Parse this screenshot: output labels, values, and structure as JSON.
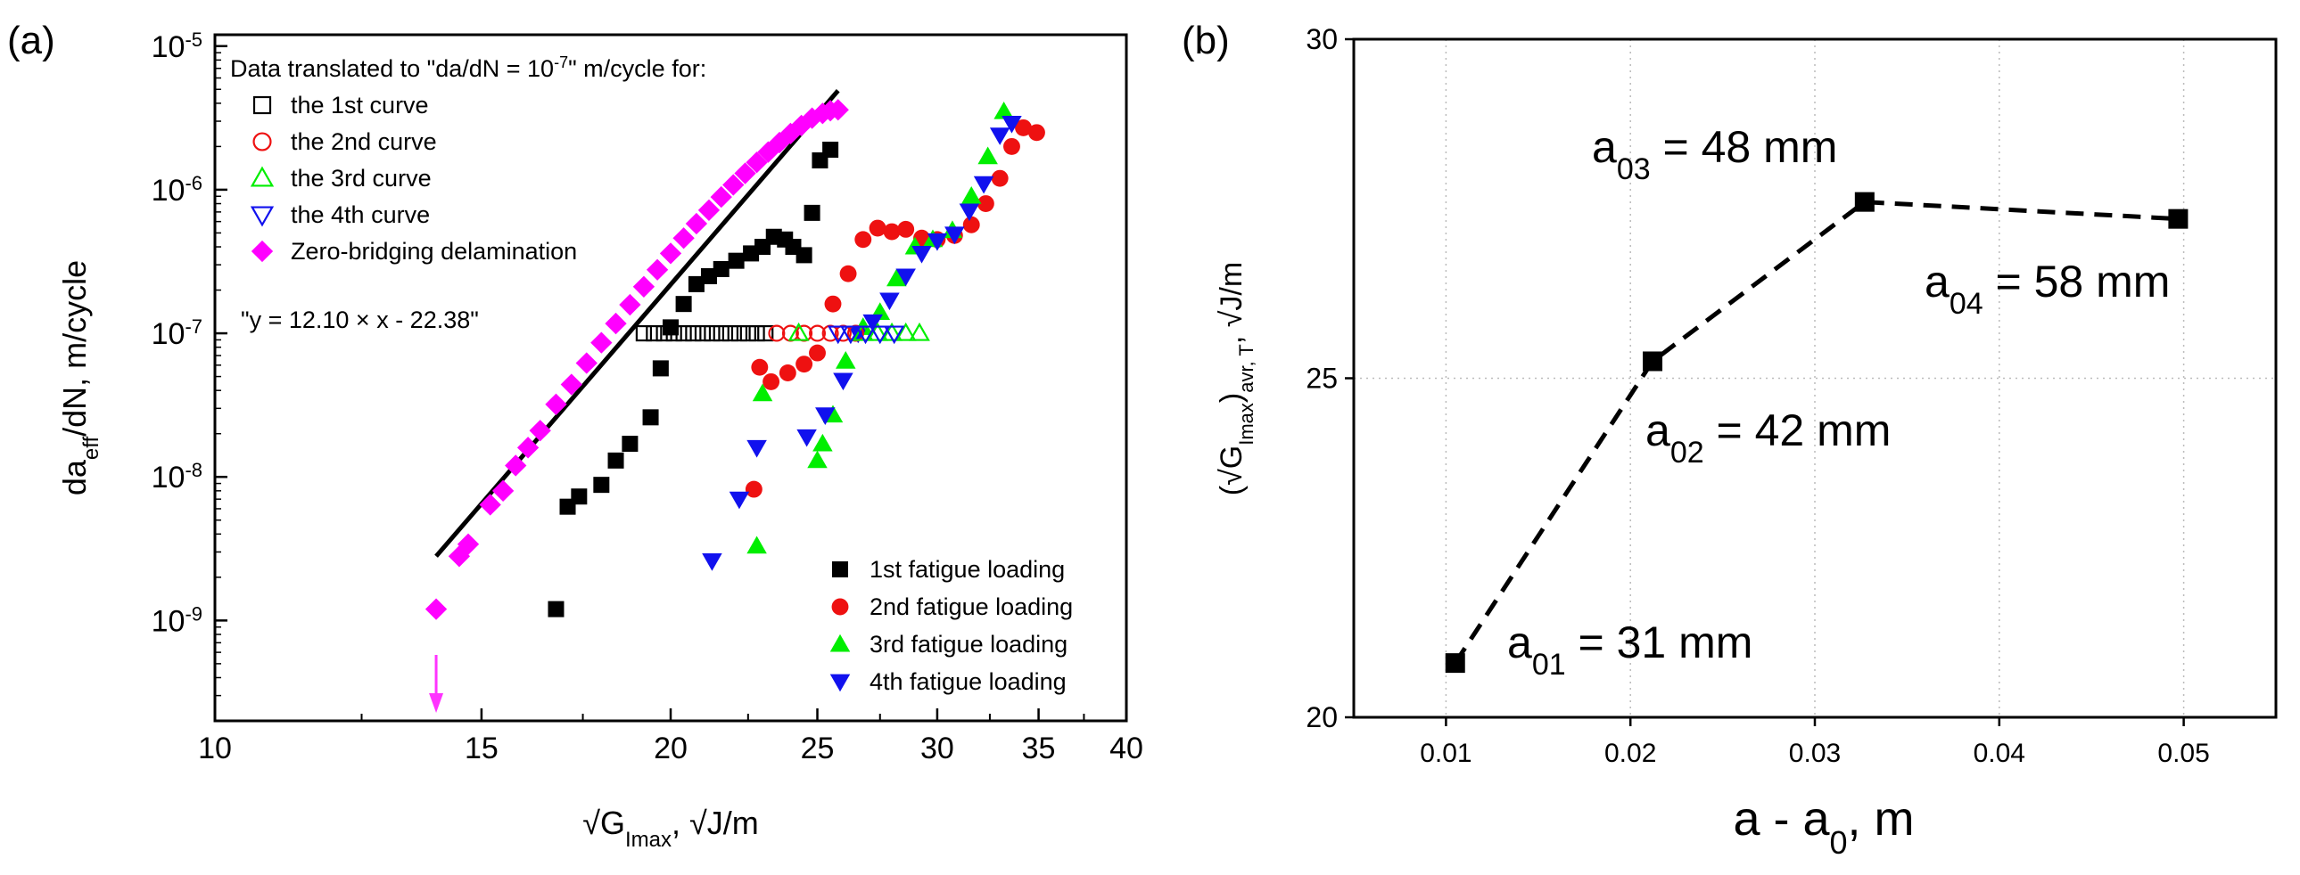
{
  "panels": {
    "a": {
      "label": "(a)"
    },
    "b": {
      "label": "(b)"
    }
  },
  "chart_data": [
    {
      "id": "a",
      "type": "scatter",
      "x_scale": "log",
      "y_scale": "log",
      "xlim": [
        10,
        40
      ],
      "ylim": [
        2e-10,
        1.2e-05
      ],
      "x_ticks": [
        10,
        15,
        20,
        25,
        30,
        35,
        40
      ],
      "y_ticks": [
        {
          "value": 1e-09,
          "base": "10",
          "exp": "-9"
        },
        {
          "value": 1e-08,
          "base": "10",
          "exp": "-8"
        },
        {
          "value": 1e-07,
          "base": "10",
          "exp": "-7"
        },
        {
          "value": 1e-06,
          "base": "10",
          "exp": "-6"
        },
        {
          "value": 1e-05,
          "base": "10",
          "exp": "-5"
        }
      ],
      "xlabel": {
        "pre": "√G",
        "sub": "Imax",
        "post": ", √J/m"
      },
      "ylabel": {
        "pre": "da",
        "sub": "eff",
        "post": "/dN, m/cycle"
      },
      "legend_top": {
        "title_pre": "Data translated to \"da/dN = 10",
        "title_exp": "-7",
        "title_post": "\" m/cycle for:",
        "entries": [
          "the 1st curve",
          "the 2nd curve",
          "the 3rd curve",
          "the 4th curve",
          "Zero-bridging delamination"
        ]
      },
      "legend_bottom": [
        "1st fatigue loading",
        "2nd fatigue loading",
        "3rd fatigue loading",
        "4th fatigue loading"
      ],
      "fit": {
        "label": "\"y = 12.10 × x - 22.38\"",
        "x": [
          14.0,
          25.8
        ],
        "y": [
          2.8e-09,
          4.9e-06
        ],
        "color": "#000000"
      },
      "arrow": {
        "x": 14.0,
        "color": "#ff33ff"
      },
      "series": [
        {
          "name": "1st fatigue loading",
          "marker": "square",
          "filled": true,
          "color": "#000000",
          "x": [
            16.8,
            17.1,
            17.4,
            18.0,
            18.4,
            18.8,
            19.4,
            19.7,
            20.0,
            20.4,
            20.8,
            21.2,
            21.6,
            22.1,
            22.6,
            23.0,
            23.4,
            23.8,
            24.1,
            24.5,
            24.8,
            25.1,
            25.5
          ],
          "y": [
            1.2e-09,
            6.2e-09,
            7.3e-09,
            8.8e-09,
            1.3e-08,
            1.7e-08,
            2.6e-08,
            5.7e-08,
            1.1e-07,
            1.6e-07,
            2.2e-07,
            2.5e-07,
            2.8e-07,
            3.2e-07,
            3.6e-07,
            4e-07,
            4.7e-07,
            4.5e-07,
            4e-07,
            3.5e-07,
            6.9e-07,
            1.6e-06,
            1.9e-06
          ]
        },
        {
          "name": "2nd fatigue loading",
          "marker": "circle",
          "filled": true,
          "color": "#ee1111",
          "x": [
            22.7,
            22.9,
            23.3,
            23.9,
            24.5,
            25.0,
            25.6,
            26.2,
            26.8,
            27.4,
            28.0,
            28.6,
            29.3,
            30.0,
            30.8,
            31.6,
            32.3,
            33.0,
            33.6,
            34.2,
            34.9
          ],
          "y": [
            8.2e-09,
            5.8e-08,
            4.6e-08,
            5.3e-08,
            6.1e-08,
            7.3e-08,
            1.6e-07,
            2.6e-07,
            4.5e-07,
            5.4e-07,
            5.1e-07,
            5.3e-07,
            4.6e-07,
            4.5e-07,
            4.8e-07,
            5.7e-07,
            8e-07,
            1.2e-06,
            2e-06,
            2.7e-06,
            2.5e-06
          ]
        },
        {
          "name": "3rd fatigue loading",
          "marker": "triangle-up",
          "filled": true,
          "color": "#00ee00",
          "x": [
            22.8,
            23.0,
            25.0,
            25.2,
            25.6,
            26.1,
            26.8,
            27.5,
            28.2,
            29.0,
            29.8,
            30.7,
            31.6,
            32.4,
            33.2
          ],
          "y": [
            3.3e-09,
            3.8e-08,
            1.3e-08,
            1.7e-08,
            2.7e-08,
            6.4e-08,
            1.1e-07,
            1.4e-07,
            2.4e-07,
            4e-07,
            4.5e-07,
            5.2e-07,
            9e-07,
            1.7e-06,
            3.5e-06
          ]
        },
        {
          "name": "4th fatigue loading",
          "marker": "triangle-down",
          "filled": true,
          "color": "#1111ee",
          "x": [
            21.3,
            22.2,
            22.8,
            24.6,
            25.3,
            26.0,
            26.6,
            27.2,
            27.9,
            28.6,
            29.3,
            30.0,
            30.8,
            31.5,
            32.2,
            33.0,
            33.6
          ],
          "y": [
            2.6e-09,
            7e-09,
            1.6e-08,
            1.9e-08,
            2.7e-08,
            4.7e-08,
            1e-07,
            1.2e-07,
            1.7e-07,
            2.5e-07,
            3.6e-07,
            4.4e-07,
            4.9e-07,
            7.1e-07,
            1.1e-06,
            2.4e-06,
            2.9e-06
          ]
        },
        {
          "name": "the 1st curve",
          "marker": "square",
          "filled": false,
          "color": "#000000",
          "x": [
            19.2,
            19.5,
            19.8,
            20.1,
            20.4,
            20.7,
            21.0,
            21.3,
            21.6,
            21.9,
            22.2,
            22.5,
            22.8,
            23.1
          ],
          "y": [
            1e-07,
            1e-07,
            1e-07,
            1e-07,
            1e-07,
            1e-07,
            1e-07,
            1e-07,
            1e-07,
            1e-07,
            1e-07,
            1e-07,
            1e-07,
            1e-07
          ]
        },
        {
          "name": "the 2nd curve",
          "marker": "circle",
          "filled": false,
          "color": "#ee1111",
          "x": [
            23.5,
            24.0,
            24.5,
            25.0,
            25.5,
            26.0,
            26.5
          ],
          "y": [
            1e-07,
            1e-07,
            1e-07,
            1e-07,
            1e-07,
            1e-07,
            1e-07
          ]
        },
        {
          "name": "the 3rd curve",
          "marker": "triangle-up",
          "filled": false,
          "color": "#00ee00",
          "x": [
            24.3,
            26.8,
            27.4,
            28.0,
            28.6,
            29.2
          ],
          "y": [
            1e-07,
            1e-07,
            1e-07,
            1e-07,
            1e-07,
            1e-07
          ]
        },
        {
          "name": "the 4th curve",
          "marker": "triangle-down",
          "filled": false,
          "color": "#1111ee",
          "x": [
            25.8,
            26.3,
            26.9,
            27.5,
            28.1
          ],
          "y": [
            1e-07,
            1e-07,
            1e-07,
            1e-07,
            1e-07
          ]
        },
        {
          "name": "Zero-bridging delamination",
          "marker": "diamond",
          "filled": true,
          "color": "#ff00ff",
          "x": [
            14.0,
            14.5,
            14.7,
            15.2,
            15.5,
            15.8,
            16.1,
            16.4,
            16.8,
            17.2,
            17.6,
            18.0,
            18.4,
            18.8,
            19.2,
            19.6,
            20.0,
            20.4,
            20.8,
            21.2,
            21.6,
            22.0,
            22.4,
            22.8,
            23.2,
            23.6,
            24.0,
            24.4,
            24.8,
            25.2,
            25.5,
            25.8
          ],
          "y": [
            1.2e-09,
            2.8e-09,
            3.4e-09,
            6.4e-09,
            8e-09,
            1.2e-08,
            1.6e-08,
            2.1e-08,
            3.2e-08,
            4.4e-08,
            6.2e-08,
            8.6e-08,
            1.17e-07,
            1.58e-07,
            2.11e-07,
            2.77e-07,
            3.6e-07,
            4.6e-07,
            5.8e-07,
            7.2e-07,
            8.9e-07,
            1.08e-06,
            1.3e-06,
            1.55e-06,
            1.83e-06,
            2.13e-06,
            2.46e-06,
            2.8e-06,
            3.15e-06,
            3.4e-06,
            3.55e-06,
            3.6e-06
          ]
        }
      ]
    },
    {
      "id": "b",
      "type": "line",
      "xlim": [
        0.005,
        0.055
      ],
      "ylim": [
        20,
        30
      ],
      "x_ticks": [
        0.01,
        0.02,
        0.03,
        0.04,
        0.05
      ],
      "y_ticks": [
        20,
        25,
        30
      ],
      "xlabel": {
        "pre": "a - a",
        "sub": "0",
        "post": ", m"
      },
      "ylabel": {
        "pre": "(√G",
        "sub1": "Imax",
        "mid": ")",
        "sub2": "avr, T",
        "post": ", √J/m"
      },
      "series": [
        {
          "name": "crack lengths",
          "marker": "square",
          "color": "#000000",
          "x": [
            0.0105,
            0.0212,
            0.0327,
            0.0497
          ],
          "y": [
            20.8,
            25.25,
            27.6,
            27.35
          ],
          "labels": [
            {
              "pre": "a",
              "sub": "01",
              "post": " = 31 mm"
            },
            {
              "pre": "a",
              "sub": "02",
              "post": " = 42 mm"
            },
            {
              "pre": "a",
              "sub": "03",
              "post": " = 48 mm"
            },
            {
              "pre": "a",
              "sub": "04",
              "post": " = 58 mm"
            }
          ]
        }
      ]
    }
  ]
}
